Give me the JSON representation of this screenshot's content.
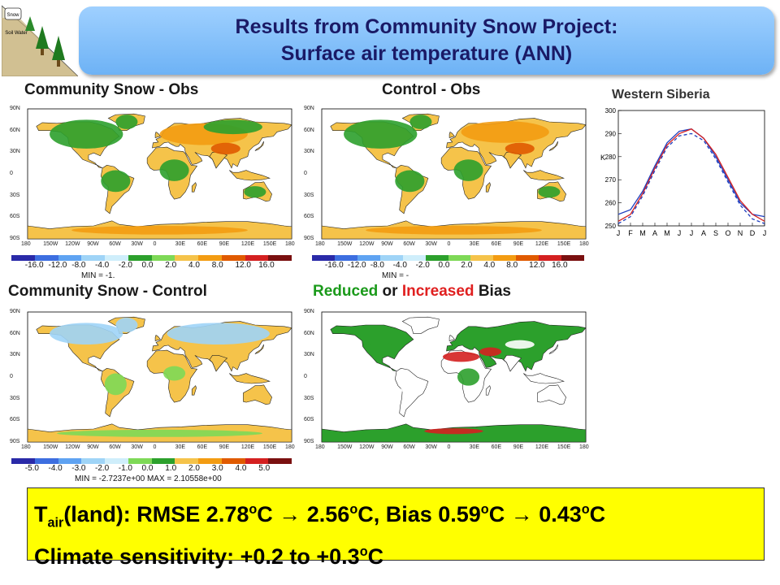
{
  "header": {
    "title_line1": "Results from Community Snow Project:",
    "title_line2": "Surface air temperature (ANN)"
  },
  "panels": {
    "p1": {
      "title": "Community Snow - Obs",
      "min_label": "MIN = -1."
    },
    "p2": {
      "title": "Control - Obs",
      "min_label": "MIN = -"
    },
    "p3": {
      "title": "Community Snow - Control",
      "min_label": "MIN = -2.7237e+00  MAX = 2.10558e+00"
    },
    "p4": {
      "title_reduced": "Reduced",
      "title_or": " or ",
      "title_increased": "Increased",
      "title_bias": " Bias"
    }
  },
  "map_axes": {
    "lat_ticks": [
      "90N",
      "60N",
      "30N",
      "0",
      "30S",
      "60S",
      "90S"
    ],
    "lon_ticks": [
      "180",
      "150W",
      "120W",
      "90W",
      "60W",
      "30W",
      "0",
      "30E",
      "60E",
      "90E",
      "120E",
      "150E",
      "180"
    ]
  },
  "colorbar_bias": {
    "labels": [
      "-16.0",
      "-12.0",
      "-8.0",
      "-4.0",
      "-2.0",
      "0.0",
      "2.0",
      "4.0",
      "8.0",
      "12.0",
      "16.0"
    ],
    "colors": [
      "#2a2aa8",
      "#3d6ee0",
      "#5fa3f2",
      "#9fd4f7",
      "#cfeefb",
      "#2ca02c",
      "#7ed957",
      "#f5c34a",
      "#f39c12",
      "#e05a00",
      "#d42020",
      "#7a1010"
    ]
  },
  "colorbar_diff": {
    "labels": [
      "-5.0",
      "-4.0",
      "-3.0",
      "-2.0",
      "-1.0",
      "0.0",
      "1.0",
      "2.0",
      "3.0",
      "4.0",
      "5.0"
    ],
    "colors": [
      "#2a2aa8",
      "#3d6ee0",
      "#5fa3f2",
      "#9fd4f7",
      "#cfeefb",
      "#7ed957",
      "#2ca02c",
      "#f5c34a",
      "#f39c12",
      "#e05a00",
      "#d42020",
      "#7a1010"
    ]
  },
  "colors": {
    "reduced": "#1a9a1a",
    "increased": "#e02020",
    "title_bg": "#8cc6ff",
    "bottom_bg": "#ffff00"
  },
  "siberia_chart": {
    "title": "Western Siberia",
    "chart_data": {
      "type": "line",
      "title": "Western Siberia",
      "ylabel": "K",
      "xlabel": "",
      "categories": [
        "J",
        "F",
        "M",
        "A",
        "M",
        "J",
        "J",
        "A",
        "S",
        "O",
        "N",
        "D",
        "J"
      ],
      "ylim": [
        250,
        300
      ],
      "yticks": [
        250,
        260,
        270,
        280,
        290,
        300
      ],
      "series": [
        {
          "color": "#1f3fbf",
          "style": "solid",
          "values": [
            255,
            257,
            265,
            276,
            286,
            291,
            292,
            288,
            280,
            270,
            260,
            255,
            254
          ]
        },
        {
          "color": "#d62020",
          "style": "solid",
          "values": [
            252,
            255,
            264,
            275,
            285,
            290,
            292,
            288,
            281,
            271,
            261,
            255,
            252
          ]
        },
        {
          "color": "#1f3fbf",
          "style": "dashed",
          "values": [
            251,
            254,
            263,
            274,
            284,
            289,
            290,
            287,
            279,
            269,
            259,
            253,
            251
          ]
        }
      ]
    }
  },
  "summary": {
    "line1_T": "T",
    "line1_sub": "air",
    "line1_a": "(land): RMSE  2.78",
    "sup": "o",
    "line1_b": "C  →  2.56",
    "line1_c": "C,   Bias  0.59",
    "line1_d": "C  →  0.43",
    "line1_e": "C",
    "line2_a": "Climate sensitivity:  +0.2 to +0.3",
    "line2_b": "C"
  }
}
